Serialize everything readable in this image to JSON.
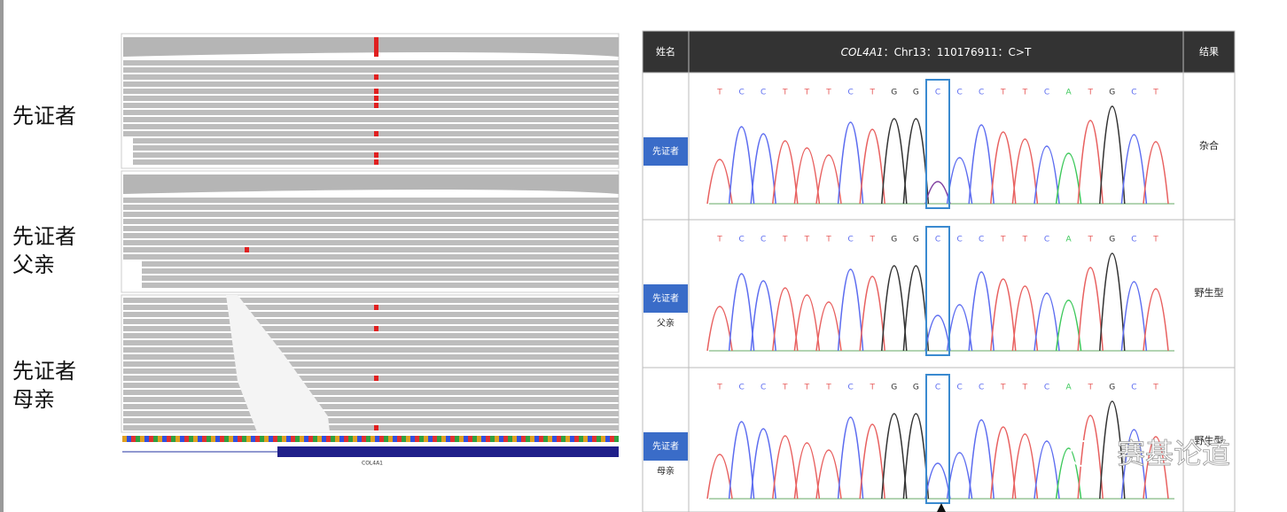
{
  "left_labels": [
    [
      "先证者"
    ],
    [
      "先证者",
      "父亲"
    ],
    [
      "先证者",
      "母亲"
    ]
  ],
  "igv_gene_label": "COL4A1",
  "table": {
    "header": {
      "name": "姓名",
      "gene": "COL4A1",
      "locus": "：Chr13：110176911：C>T",
      "result": "结果"
    },
    "rows": [
      {
        "tag": "先证者",
        "result": "杂合"
      },
      {
        "tag": "先证者",
        "relation": "父亲",
        "result": "野生型"
      },
      {
        "tag": "先证者",
        "relation": "母亲",
        "result": "野生型"
      }
    ]
  },
  "sequence": [
    "T",
    "C",
    "C",
    "T",
    "T",
    "T",
    "C",
    "T",
    "G",
    "G",
    "C",
    "C",
    "C",
    "T",
    "T",
    "C",
    "A",
    "T",
    "G",
    "C",
    "T"
  ],
  "base_colors": {
    "T": "#e8605f",
    "C": "#5c6cf0",
    "G": "#333333",
    "A": "#3cc85a"
  },
  "watermark": "赛基论道"
}
